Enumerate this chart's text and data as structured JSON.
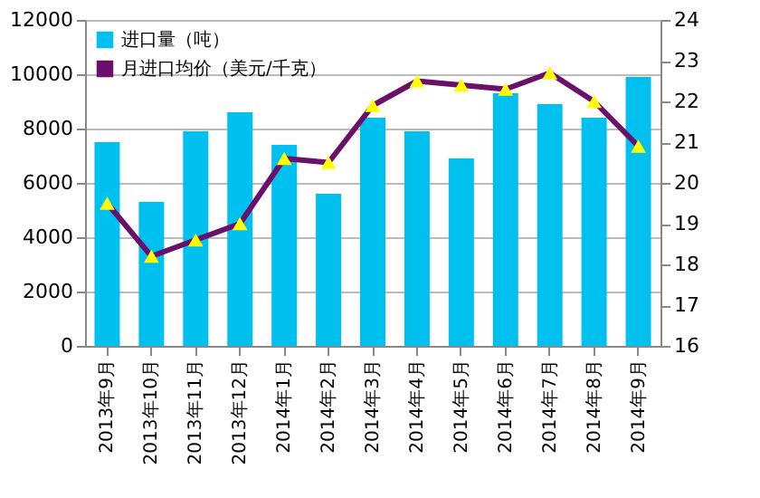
{
  "chart_data": {
    "type": "bar",
    "categories": [
      "2013年9月",
      "2013年10月",
      "2013年11月",
      "2013年12月",
      "2014年1月",
      "2014年2月",
      "2014年3月",
      "2014年4月",
      "2014年5月",
      "2014年6月",
      "2014年7月",
      "2014年8月",
      "2014年9月"
    ],
    "series": [
      {
        "name": "进口量（吨）",
        "color": "#00c0f0",
        "values": [
          7500,
          5300,
          7900,
          8600,
          7400,
          5600,
          8400,
          7900,
          6900,
          9300,
          8900,
          8400,
          9900
        ]
      },
      {
        "name": "月进口均价（美元/千克）",
        "color": "#6a0f6a",
        "type": "line",
        "axis": "y2",
        "marker": "triangle",
        "values": [
          19.5,
          18.2,
          18.6,
          19.0,
          20.6,
          20.5,
          21.9,
          22.5,
          22.4,
          22.3,
          22.7,
          22.0,
          20.9
        ]
      }
    ],
    "ylim": [
      0,
      12000
    ],
    "yticks": [
      0,
      2000,
      4000,
      6000,
      8000,
      10000,
      12000
    ],
    "y2lim": [
      16,
      24
    ],
    "y2ticks": [
      16,
      17,
      18,
      19,
      20,
      21,
      22,
      23,
      24
    ],
    "grid": "y",
    "legend": "top left"
  }
}
